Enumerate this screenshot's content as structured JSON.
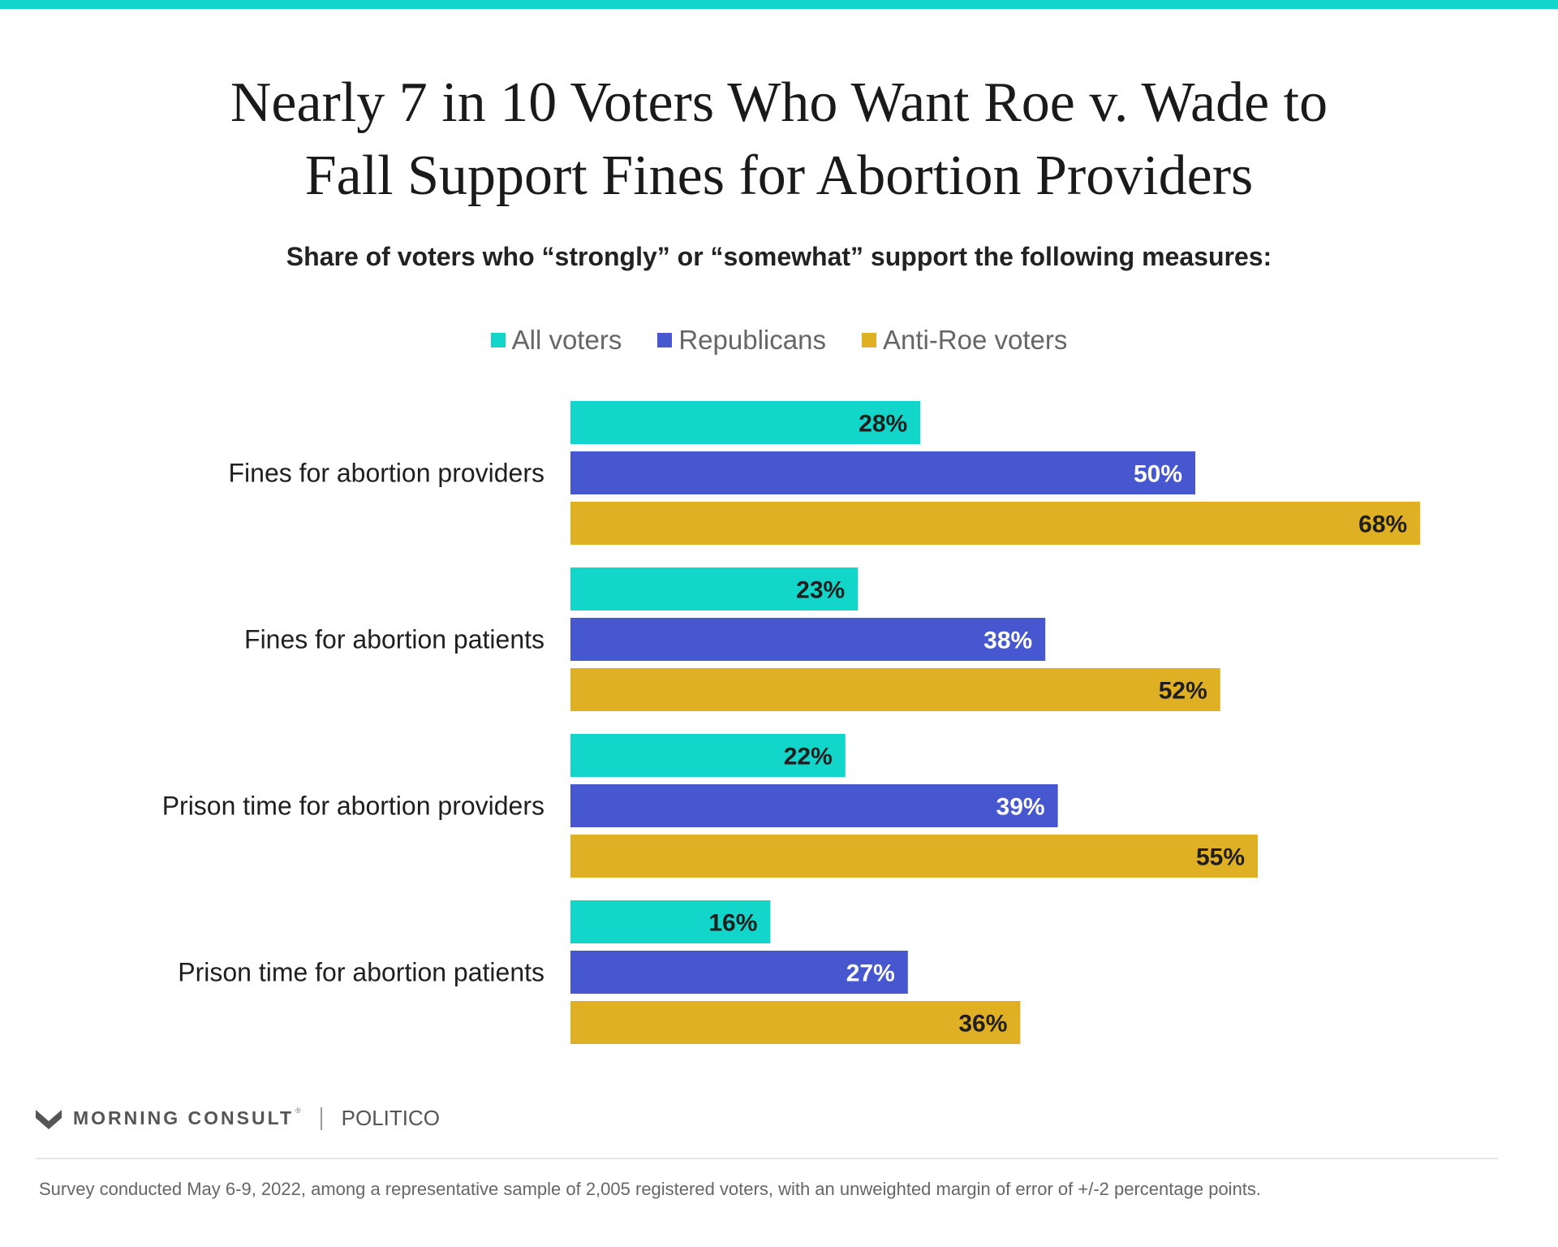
{
  "colors": {
    "accent_bar": "#12d6c9",
    "all_voters": "#12d6c9",
    "republicans": "#4657d0",
    "anti_roe": "#e0b024"
  },
  "chart_data": {
    "type": "bar",
    "orientation": "horizontal",
    "title": "Nearly 7 in 10 Voters Who Want Roe v. Wade to Fall Support Fines for Abortion Providers",
    "title_lines": [
      "Nearly 7 in 10 Voters Who Want Roe v. Wade to",
      "Fall Support Fines for Abortion Providers"
    ],
    "subtitle": "Share of voters who “strongly” or “somewhat” support the following measures:",
    "legend_position": "top-center",
    "grid": false,
    "xlim": [
      0,
      70
    ],
    "categories": [
      "Fines for abortion providers",
      "Fines for abortion patients",
      "Prison time for abortion providers",
      "Prison time for abortion patients"
    ],
    "series": [
      {
        "name": "All voters",
        "color": "#12d6c9",
        "label_color": "#1f1f1f",
        "values": [
          28,
          23,
          22,
          16
        ],
        "labels": [
          "28%",
          "23%",
          "22%",
          "16%"
        ]
      },
      {
        "name": "Republicans",
        "color": "#4657d0",
        "label_color": "#ffffff",
        "values": [
          50,
          38,
          39,
          27
        ],
        "labels": [
          "50%",
          "38%",
          "39%",
          "27%"
        ]
      },
      {
        "name": "Anti-Roe voters",
        "color": "#e0b024",
        "label_color": "#1f1f1f",
        "values": [
          68,
          52,
          55,
          36
        ],
        "labels": [
          "68%",
          "52%",
          "55%",
          "36%"
        ]
      }
    ]
  },
  "branding": {
    "morning_consult": "MORNING CONSULT",
    "registered_mark": "®",
    "politico": "POLITICO"
  },
  "footer": {
    "note": "Survey conducted May 6-9, 2022, among a representative sample of 2,005 registered voters, with an unweighted margin of error of +/-2 percentage points."
  }
}
